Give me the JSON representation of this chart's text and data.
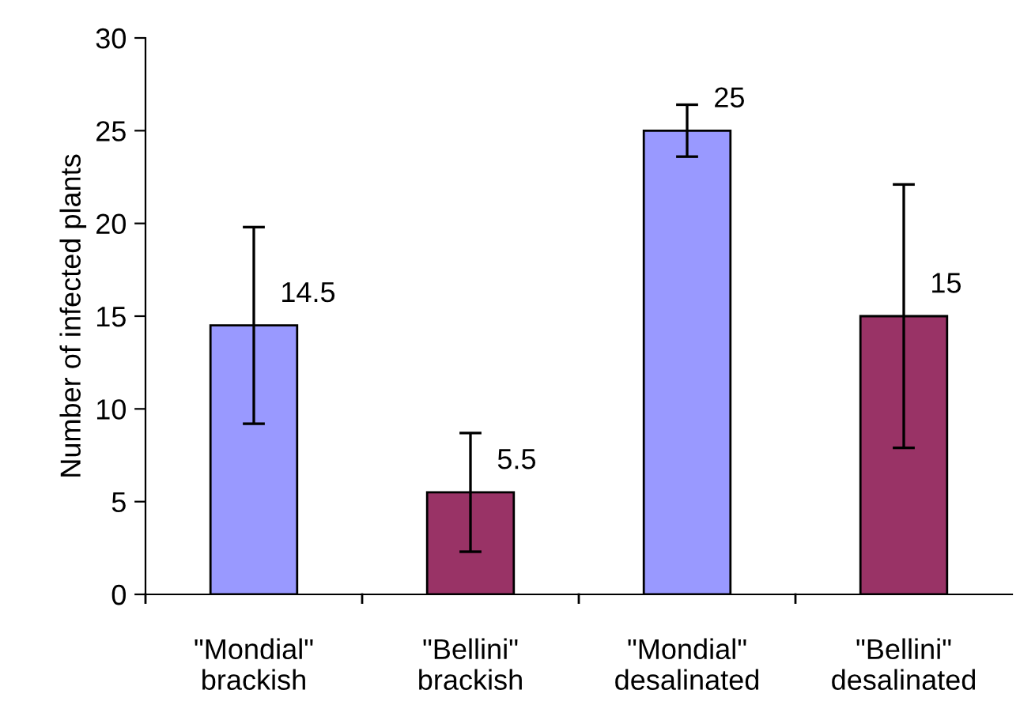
{
  "chart_data": {
    "type": "bar",
    "ylabel": "Number of infected plants",
    "categories": [
      "\"Mondial\"\nbrackish",
      "\"Bellini\"\nbrackish",
      "\"Mondial\"\ndesalinated",
      "\"Bellini\"\ndesalinated"
    ],
    "values": [
      14.5,
      5.5,
      25,
      15
    ],
    "colors": [
      "#9999ff",
      "#993366",
      "#9999ff",
      "#993366"
    ],
    "errors": [
      5.3,
      3.2,
      1.4,
      7.1
    ],
    "data_labels": true,
    "ylim": [
      0,
      30
    ],
    "yticks": [
      0,
      5,
      10,
      15,
      20,
      25,
      30
    ],
    "grid": false,
    "legend": false
  }
}
